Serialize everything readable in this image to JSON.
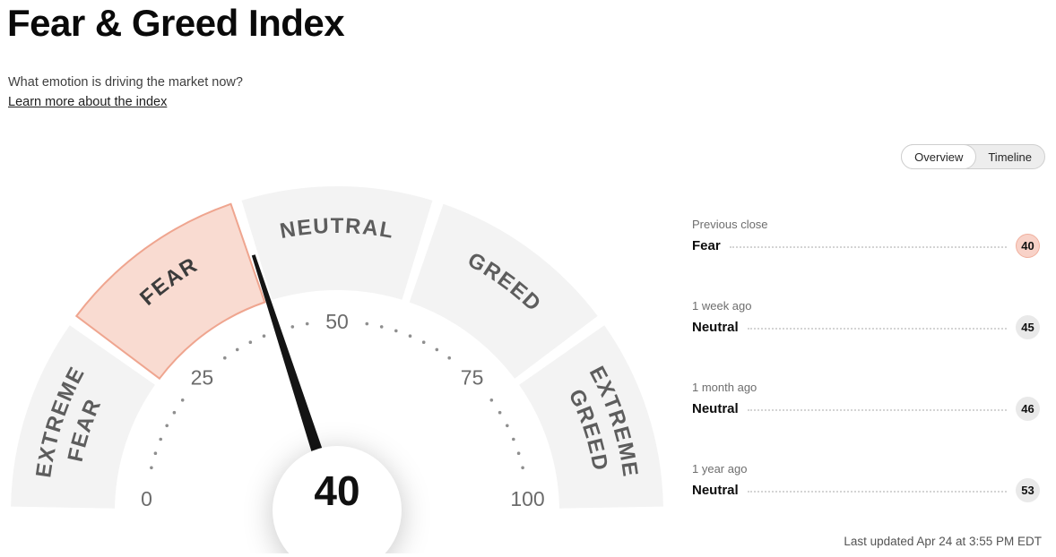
{
  "header": {
    "title": "Fear & Greed Index",
    "subtitle": "What emotion is driving the market now?",
    "link_text": "Learn more about the index"
  },
  "tabs": {
    "overview": "Overview",
    "timeline": "Timeline",
    "active": "Overview"
  },
  "chart_data": {
    "type": "gauge",
    "title": "Fear & Greed Index",
    "min": 0,
    "max": 100,
    "value": 40,
    "value_label": "Fear",
    "active_segment": "FEAR",
    "segments": [
      "EXTREME FEAR",
      "FEAR",
      "NEUTRAL",
      "GREED",
      "EXTREME GREED"
    ],
    "tick_labels": [
      "0",
      "25",
      "50",
      "75",
      "100"
    ],
    "history": [
      {
        "period": "Previous close",
        "label": "Fear",
        "value": 40,
        "highlight": true
      },
      {
        "period": "1 week ago",
        "label": "Neutral",
        "value": 45,
        "highlight": false
      },
      {
        "period": "1 month ago",
        "label": "Neutral",
        "value": 46,
        "highlight": false
      },
      {
        "period": "1 year ago",
        "label": "Neutral",
        "value": 53,
        "highlight": false
      }
    ]
  },
  "colors": {
    "highlight_fill": "#f9dbd1",
    "highlight_stroke": "#efa58f",
    "segment_fill": "#f3f3f3",
    "segment_label": "#5d5d5d",
    "active_label": "#3c3c3c",
    "needle": "#141414",
    "tick": "#8f8f8f",
    "tick_label": "#6b6b6b"
  },
  "footer": {
    "last_updated": "Last updated Apr 24 at 3:55 PM EDT"
  }
}
